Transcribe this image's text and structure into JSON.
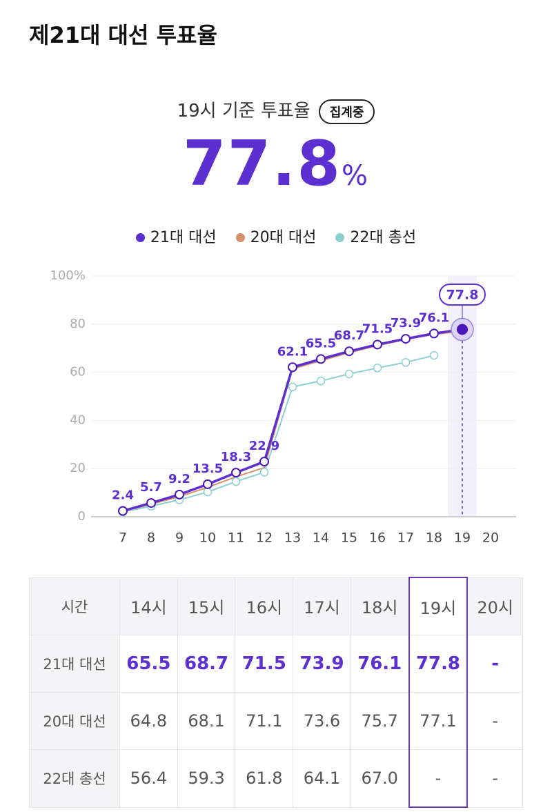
{
  "header": {
    "title": "제21대 대선 투표율"
  },
  "summary": {
    "label": "19시 기준 투표율",
    "badge": "집계중",
    "value": "77.8",
    "unit": "%"
  },
  "chart_data": {
    "type": "line",
    "x": [
      7,
      8,
      9,
      10,
      11,
      12,
      13,
      14,
      15,
      16,
      17,
      18,
      19,
      20
    ],
    "xlim": [
      6,
      21
    ],
    "xticks": [
      7,
      8,
      9,
      10,
      11,
      12,
      13,
      14,
      15,
      16,
      17,
      18,
      19,
      20
    ],
    "ylim": [
      0,
      100
    ],
    "yticks": [
      0,
      20,
      40,
      60,
      80,
      {
        "value": 100,
        "label": "100%"
      }
    ],
    "grid": true,
    "highlight_x": 19,
    "series": [
      {
        "name": "21대 대선",
        "color": "#5b2fd0",
        "values": [
          2.4,
          5.7,
          9.2,
          13.5,
          18.3,
          22.9,
          62.1,
          65.5,
          68.7,
          71.5,
          73.9,
          76.1,
          77.8,
          null
        ]
      },
      {
        "name": "20대 대선",
        "color": "#d4926a",
        "values": [
          2.2,
          5.2,
          8.4,
          12.2,
          16.6,
          20.4,
          61.4,
          64.8,
          68.1,
          71.1,
          73.6,
          75.7,
          77.1,
          null
        ]
      },
      {
        "name": "22대 총선",
        "color": "#8ccfcf",
        "values": [
          2.0,
          4.4,
          7.0,
          10.3,
          14.6,
          18.5,
          53.9,
          56.4,
          59.3,
          61.8,
          64.1,
          67.0,
          null,
          null
        ]
      }
    ]
  },
  "table": {
    "header": [
      "시간",
      "14시",
      "15시",
      "16시",
      "17시",
      "18시",
      "19시",
      "20시"
    ],
    "rows": [
      [
        "21대 대선",
        "65.5",
        "68.7",
        "71.5",
        "73.9",
        "76.1",
        "77.8",
        "-"
      ],
      [
        "20대 대선",
        "64.8",
        "68.1",
        "71.1",
        "73.6",
        "75.7",
        "77.1",
        "-"
      ],
      [
        "22대 총선",
        "56.4",
        "59.3",
        "61.8",
        "64.1",
        "67.0",
        "-",
        "-"
      ]
    ]
  }
}
